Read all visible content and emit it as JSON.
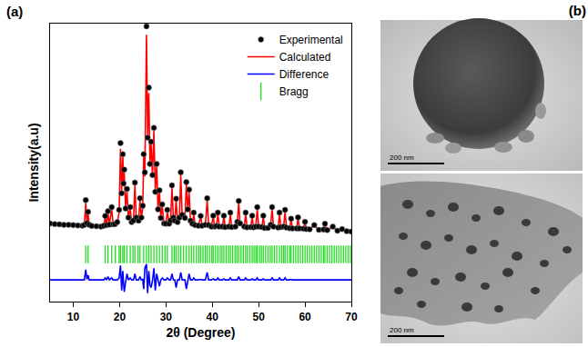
{
  "chart_data": {
    "type": "scatter",
    "annotations": [
      "(a)"
    ],
    "x_label": "2θ (Degree)",
    "y_label": "Intensity(a.u)",
    "xlim": [
      5,
      70
    ],
    "xticks": [
      10,
      20,
      30,
      40,
      50,
      60,
      70
    ],
    "ylim": [
      0,
      100
    ],
    "tick_labels": "x",
    "grid": false,
    "legend": "upper right",
    "x": [
      5,
      6,
      7,
      8,
      9,
      10,
      11,
      12,
      12.4,
      12.7,
      12.95,
      13.2,
      13.45,
      14,
      15,
      16,
      16.6,
      16.9,
      17.2,
      17.5,
      17.8,
      18.3,
      18.6,
      19,
      19.5,
      19.9,
      20.2,
      20.45,
      20.7,
      20.85,
      21.0,
      21.3,
      21.6,
      21.9,
      22.3,
      22.6,
      23.0,
      23.3,
      23.6,
      24.1,
      24.4,
      24.7,
      25.0,
      25.2,
      25.45,
      25.8,
      26.05,
      26.3,
      26.55,
      26.8,
      27.1,
      27.4,
      27.7,
      28.0,
      28.3,
      28.6,
      28.9,
      29.2,
      29.6,
      30.0,
      30.3,
      30.7,
      31.0,
      31.3,
      31.6,
      31.9,
      32.2,
      32.5,
      32.9,
      33.2,
      33.5,
      34.1,
      34.4,
      34.7,
      35.0,
      35.3,
      35.7,
      36.0,
      36.3,
      37.0,
      37.5,
      37.8,
      38.5,
      38.9,
      39.2,
      39.8,
      40.2,
      40.5,
      40.9,
      41.2,
      41.5,
      42.2,
      42.5,
      42.8,
      43.6,
      43.9,
      44.2,
      45.0,
      45.4,
      45.7,
      46.0,
      46.9,
      47.2,
      47.5,
      48.3,
      48.6,
      48.9,
      49.4,
      49.7,
      50.0,
      50.7,
      51.0,
      51.3,
      52.0,
      52.6,
      52.9,
      53.2,
      54.2,
      54.5,
      54.8,
      55.4,
      55.7,
      56.0,
      56.7,
      57.0,
      57.3,
      58.2,
      58.5,
      58.8,
      59.7,
      60.0,
      60.3,
      61.0,
      62.0,
      63.0,
      64.0,
      64.3,
      64.8,
      66.0,
      67,
      68,
      69,
      70
    ],
    "series": [
      {
        "name": "Experimental",
        "type": "scatter",
        "marker": "circle",
        "color": "#000000",
        "values": [
          28.1,
          27.9,
          27.8,
          27.6,
          27.6,
          27.5,
          27.4,
          27.3,
          27.6,
          36.5,
          28.2,
          32.3,
          27.6,
          27.2,
          27.1,
          27,
          27.3,
          30.8,
          27.5,
          32.5,
          27.7,
          34,
          27.8,
          27.9,
          28.6,
          33,
          57,
          39,
          53,
          42.5,
          47.5,
          33.5,
          40.5,
          30.2,
          34,
          28.6,
          29.2,
          42.8,
          30.2,
          29.1,
          37.2,
          30.2,
          34.5,
          53,
          46.5,
          99,
          59,
          77,
          49.5,
          57.5,
          45.5,
          62.5,
          39.5,
          49.5,
          33.2,
          40,
          30.1,
          35,
          28.1,
          28,
          33,
          28,
          29.2,
          41.8,
          30.2,
          29.1,
          37,
          28.6,
          30.2,
          46.5,
          31.2,
          30.1,
          43,
          33.2,
          40.3,
          29.1,
          28,
          32,
          27.5,
          27.3,
          30.8,
          27.3,
          27.6,
          37.2,
          27.5,
          27,
          30.9,
          27,
          27.2,
          32,
          27,
          27,
          30.9,
          26.8,
          27,
          32,
          26.8,
          27,
          28.7,
          36.2,
          28.1,
          27,
          32,
          26.7,
          26.8,
          30.9,
          26.7,
          27,
          34,
          27,
          26.8,
          30.9,
          26.5,
          26.5,
          27.6,
          34,
          27,
          26.6,
          32,
          26.8,
          27,
          33,
          26.6,
          26.4,
          29.8,
          26.3,
          26.3,
          30.3,
          26.3,
          26.2,
          28.7,
          26.1,
          26,
          27.5,
          25.8,
          25.9,
          28,
          25.7,
          27,
          25.5,
          26.1,
          25.3,
          25.2
        ]
      },
      {
        "name": "Calculated",
        "type": "line",
        "line_style": "solid",
        "color": "#ff0000",
        "values": [
          28,
          27.9,
          27.8,
          27.7,
          27.6,
          27.5,
          27.4,
          27.3,
          27.5,
          35.5,
          28,
          31.5,
          27.5,
          27.2,
          27.1,
          27.1,
          27.3,
          30.4,
          27.5,
          31.8,
          27.6,
          33.5,
          27.8,
          27.8,
          28.5,
          32,
          55,
          40,
          52,
          42,
          46.5,
          34,
          39.5,
          30,
          33.5,
          28.5,
          29,
          42,
          30,
          29,
          36.5,
          30,
          34,
          52,
          45,
          96,
          60,
          75,
          50,
          56.5,
          45,
          61.5,
          40,
          48.5,
          33,
          39.5,
          30,
          34.5,
          28,
          28,
          32.5,
          28,
          29,
          41,
          30,
          29,
          36.5,
          28.5,
          30,
          45.5,
          31,
          30,
          42.5,
          33,
          39.5,
          29,
          28,
          31.5,
          27.5,
          27.3,
          30.5,
          27.3,
          27.5,
          36.5,
          27.5,
          27,
          30.5,
          27,
          27.2,
          31.5,
          27,
          27,
          30.5,
          26.8,
          27,
          31.5,
          26.8,
          27,
          28.5,
          35.5,
          28,
          27,
          31.5,
          26.7,
          26.8,
          30.5,
          26.7,
          27,
          33.5,
          27,
          26.8,
          30.5,
          26.5,
          26.5,
          27.5,
          33.5,
          27,
          26.6,
          31.5,
          26.8,
          27,
          32.5,
          26.6,
          26.4,
          29.5,
          26.3,
          26.3,
          30,
          26.3,
          26.2,
          28.5,
          26.1,
          26,
          27.3,
          25.8,
          25.9,
          27.8,
          25.7,
          26.8,
          25.5,
          26,
          25.3,
          25.2
        ]
      },
      {
        "name": "Difference",
        "type": "line",
        "line_style": "solid",
        "color": "#0000ff",
        "values": [
          7.8,
          7.8,
          7.8,
          7.8,
          7.8,
          7.8,
          7.8,
          7.8,
          7.8,
          11.5,
          8,
          9.5,
          7.8,
          7.8,
          7.8,
          7.8,
          7.8,
          8.5,
          7.8,
          9,
          7.8,
          8.5,
          7.8,
          7.8,
          7.8,
          8.5,
          13,
          4,
          11,
          7,
          3.5,
          7,
          10,
          7.8,
          8.5,
          7.8,
          7.8,
          10,
          7.8,
          7.8,
          9,
          7.8,
          8,
          4.5,
          12,
          13.5,
          3,
          11,
          6,
          5,
          7.5,
          12,
          4,
          10,
          7.8,
          5.5,
          7.8,
          8.5,
          7.8,
          7.8,
          8.5,
          7.8,
          7.8,
          10,
          7.8,
          7.8,
          5,
          7.8,
          7.8,
          10.5,
          7.8,
          7.8,
          4.5,
          7.8,
          10,
          7.8,
          7.8,
          8.5,
          7.8,
          7.8,
          8,
          7.8,
          7.8,
          10.5,
          7.8,
          7.8,
          8.2,
          7.8,
          7.8,
          8.5,
          7.8,
          7.8,
          8.2,
          7.8,
          7.8,
          8.5,
          7.8,
          7.8,
          7.8,
          9,
          7.8,
          7.8,
          8.5,
          7.8,
          7.8,
          8.2,
          7.8,
          7.8,
          8.5,
          7.8,
          7.8,
          8.2,
          7.8,
          7.8,
          7.8,
          8.5,
          7.8,
          7.8,
          8.5,
          7.8,
          7.8,
          8.5,
          7.8,
          7.8,
          8,
          7.8,
          7.8,
          8,
          7.8,
          7.8,
          7.8,
          7.8,
          7.8,
          7.8,
          7.8,
          7.8,
          7.8,
          7.8,
          7.8,
          7.8,
          7.8,
          7.8,
          7.8
        ]
      },
      {
        "name": "Bragg",
        "type": "scatter",
        "marker": "tick",
        "color": "#22dd22",
        "x": [
          12.7,
          13.2,
          16.9,
          17.5,
          18.3,
          19.1,
          19.9,
          20.2,
          20.7,
          21.0,
          21.6,
          22.3,
          22.9,
          23.3,
          24.0,
          24.4,
          25.2,
          25.8,
          26.3,
          26.8,
          27.4,
          28.0,
          28.6,
          29.2,
          29.8,
          30.3,
          31.3,
          31.8,
          32.2,
          32.7,
          33.2,
          33.8,
          34.4,
          35.0,
          35.5,
          36.0,
          36.6,
          37.1,
          37.5,
          38.0,
          38.5,
          38.9,
          39.4,
          39.9,
          40.2,
          40.7,
          41.2,
          41.7,
          42.1,
          42.5,
          43.0,
          43.5,
          43.9,
          44.4,
          44.9,
          45.3,
          45.7,
          46.2,
          46.7,
          47.2,
          47.6,
          48.1,
          48.6,
          49.0,
          49.4,
          49.7,
          50.2,
          50.6,
          51.0,
          51.5,
          52.0,
          52.5,
          52.9,
          53.4,
          53.9,
          54.5,
          55.0,
          55.4,
          55.7,
          56.2,
          56.7,
          57.0,
          57.5,
          58.0,
          58.5,
          59.0,
          59.5,
          60.0,
          60.5,
          61.0,
          61.5,
          62.0,
          62.5,
          63.0,
          63.5,
          64.0,
          64.3,
          64.8,
          65.3,
          65.8,
          66.3,
          66.8,
          67.3,
          67.8,
          68.3,
          68.8,
          69.3,
          69.8
        ],
        "values": [
          17,
          17,
          17,
          17,
          17,
          17,
          17,
          17,
          17,
          17,
          17,
          17,
          17,
          17,
          17,
          17,
          17,
          17,
          17,
          17,
          17,
          17,
          17,
          17,
          17,
          17,
          17,
          17,
          17,
          17,
          17,
          17,
          17,
          17,
          17,
          17,
          17,
          17,
          17,
          17,
          17,
          17,
          17,
          17,
          17,
          17,
          17,
          17,
          17,
          17,
          17,
          17,
          17,
          17,
          17,
          17,
          17,
          17,
          17,
          17,
          17,
          17,
          17,
          17,
          17,
          17,
          17,
          17,
          17,
          17,
          17,
          17,
          17,
          17,
          17,
          17,
          17,
          17,
          17,
          17,
          17,
          17,
          17,
          17,
          17,
          17,
          17,
          17,
          17,
          17,
          17,
          17,
          17,
          17,
          17,
          17,
          17,
          17,
          17,
          17,
          17,
          17,
          17,
          17,
          17,
          17,
          17,
          17
        ]
      }
    ]
  },
  "figure_b": {
    "label": "(b)",
    "images": [
      {
        "scale_bar": "200 nm"
      },
      {
        "scale_bar": "200 nm"
      }
    ]
  }
}
